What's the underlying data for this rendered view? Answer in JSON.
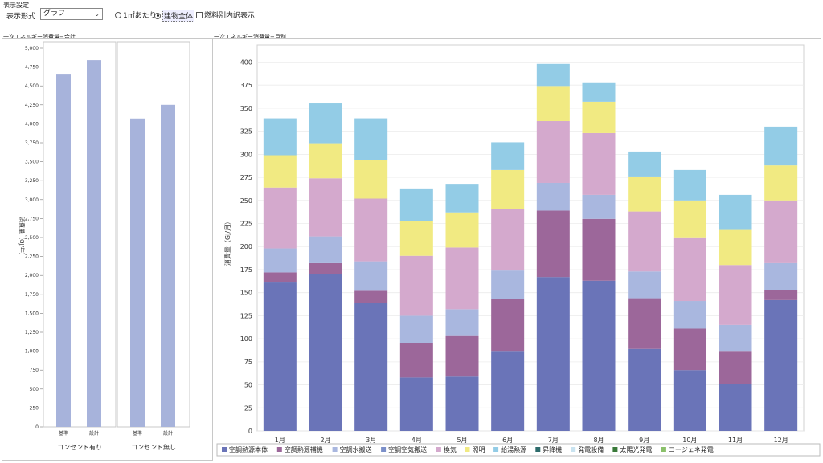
{
  "settings": {
    "title": "表示設定",
    "format_label": "表示形式",
    "format_value": "グラフ",
    "options": {
      "per_sqm": "1㎡あたり",
      "by_item": "建物全体",
      "fuel_breakdown": "燃料別内訳表示"
    }
  },
  "left_panel": {
    "title": "一次エネルギー消費量−合計"
  },
  "right_panel": {
    "title": "一次エネルギー消費量−月別"
  },
  "colors": {
    "空調熱源本体": "#6a74b8",
    "空調熱源補機": "#9c679a",
    "空調水搬送": "#a9b7df",
    "空調空気搬送": "#7b8fc9",
    "換気": "#d4a9cd",
    "照明": "#f1ea82",
    "給湯熱源": "#93cce6",
    "昇降機": "#2d6b6b",
    "発電設備": "#c9e3f0",
    "太陽光発電": "#3a7a3a",
    "コージェネ発電": "#8ac06a",
    "total_bar": "#a7b3db"
  },
  "chart_data": [
    {
      "type": "bar",
      "title": "一次エネルギー消費量−合計",
      "ylabel": "消費量（GJ/年）",
      "ylim": [
        0,
        5000
      ],
      "yticks": [
        0,
        250,
        500,
        750,
        1000,
        1250,
        1500,
        1750,
        2000,
        2250,
        2500,
        2750,
        3000,
        3250,
        3500,
        3750,
        4000,
        4250,
        4500,
        4750,
        5000
      ],
      "ytick_labels": [
        "0",
        "250",
        "500",
        "750",
        "1,000",
        "1,250",
        "1,500",
        "1,750",
        "2,000",
        "2,250",
        "2,500",
        "2,750",
        "3,000",
        "3,250",
        "3,500",
        "3,750",
        "4,000",
        "4,250",
        "4,500",
        "4,750",
        "5,000"
      ],
      "groups": [
        {
          "name": "コンセント有り",
          "categories": [
            "基準",
            "設計"
          ],
          "values": [
            4660,
            4840
          ]
        },
        {
          "name": "コンセント無し",
          "categories": [
            "基準",
            "設計"
          ],
          "values": [
            4070,
            4250
          ]
        }
      ]
    },
    {
      "type": "bar",
      "stacked": true,
      "title": "一次エネルギー消費量−月別",
      "ylabel": "消費量（GJ/月）",
      "ylim": [
        0,
        410
      ],
      "yticks": [
        0,
        25,
        50,
        75,
        100,
        125,
        150,
        175,
        200,
        225,
        250,
        275,
        300,
        325,
        350,
        375,
        400
      ],
      "grid": true,
      "legend": "bottom",
      "categories": [
        "1月",
        "2月",
        "3月",
        "4月",
        "5月",
        "6月",
        "7月",
        "8月",
        "9月",
        "10月",
        "11月",
        "12月"
      ],
      "series": [
        {
          "name": "空調熱源本体",
          "values": [
            161,
            170,
            139,
            58,
            59,
            86,
            167,
            163,
            89,
            66,
            51,
            142
          ]
        },
        {
          "name": "空調熱源補機",
          "values": [
            11,
            12,
            13,
            37,
            44,
            57,
            72,
            67,
            55,
            45,
            35,
            11
          ]
        },
        {
          "name": "空調水搬送",
          "values": [
            26,
            29,
            32,
            30,
            29,
            31,
            30,
            26,
            29,
            30,
            29,
            29
          ]
        },
        {
          "name": "空調空気搬送",
          "values": [
            0,
            0,
            0,
            0,
            0,
            0,
            0,
            0,
            0,
            0,
            0,
            0
          ]
        },
        {
          "name": "換気",
          "values": [
            66,
            63,
            68,
            65,
            67,
            67,
            67,
            67,
            65,
            69,
            65,
            68
          ]
        },
        {
          "name": "照明",
          "values": [
            35,
            38,
            42,
            38,
            38,
            42,
            38,
            34,
            38,
            40,
            38,
            38
          ]
        },
        {
          "name": "給湯熱源",
          "values": [
            40,
            44,
            45,
            35,
            31,
            30,
            24,
            21,
            27,
            33,
            38,
            42
          ]
        },
        {
          "name": "昇降機",
          "values": [
            0,
            0,
            0,
            0,
            0,
            0,
            0,
            0,
            0,
            0,
            0,
            0
          ]
        },
        {
          "name": "発電設備",
          "values": [
            0,
            0,
            0,
            0,
            0,
            0,
            0,
            0,
            0,
            0,
            0,
            0
          ]
        },
        {
          "name": "太陽光発電",
          "values": [
            0,
            0,
            0,
            0,
            0,
            0,
            0,
            0,
            0,
            0,
            0,
            0
          ]
        },
        {
          "name": "コージェネ発電",
          "values": [
            0,
            0,
            0,
            0,
            0,
            0,
            0,
            0,
            0,
            0,
            0,
            0
          ]
        }
      ]
    }
  ]
}
